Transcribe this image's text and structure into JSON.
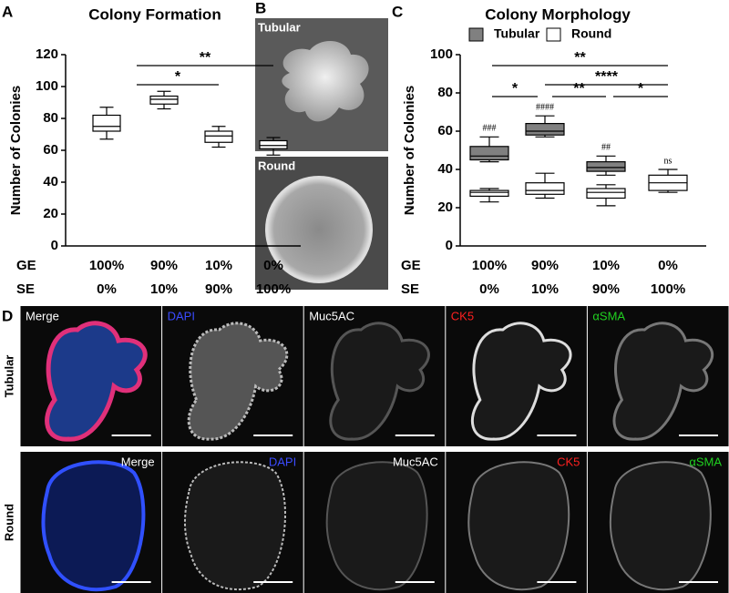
{
  "chart_data": [
    {
      "type": "box",
      "title": "Colony Formation",
      "y_label": "Number of Colonies",
      "category_rows": [
        {
          "label": "GE",
          "values": [
            "100%",
            "90%",
            "10%",
            "0%"
          ]
        },
        {
          "label": "SE",
          "values": [
            "0%",
            "10%",
            "90%",
            "100%"
          ]
        }
      ],
      "ylim": [
        0,
        120
      ],
      "yticks": [
        0,
        20,
        40,
        60,
        80,
        100,
        120
      ],
      "series": [
        {
          "color": "#ffffff",
          "values": [
            {
              "min": 67,
              "q1": 72,
              "median": 75,
              "q3": 82,
              "max": 87
            },
            {
              "min": 86,
              "q1": 89,
              "median": 92,
              "q3": 94,
              "max": 97
            },
            {
              "min": 62,
              "q1": 65,
              "median": 69,
              "q3": 72,
              "max": 75
            },
            {
              "min": 57,
              "q1": 61,
              "median": 63,
              "q3": 66,
              "max": 68
            }
          ]
        }
      ],
      "significance": [
        "*",
        "**"
      ]
    },
    {
      "type": "box",
      "title": "Colony Morphology",
      "y_label": "Number of Colonies",
      "category_rows": [
        {
          "label": "GE",
          "values": [
            "100%",
            "90%",
            "10%",
            "0%"
          ]
        },
        {
          "label": "SE",
          "values": [
            "0%",
            "10%",
            "90%",
            "100%"
          ]
        }
      ],
      "ylim": [
        0,
        100
      ],
      "yticks": [
        0,
        20,
        40,
        60,
        80,
        100
      ],
      "series": [
        {
          "name": "Tubular",
          "color": "#808080",
          "values": [
            {
              "min": 44,
              "q1": 45,
              "median": 47,
              "q3": 52,
              "max": 57
            },
            {
              "min": 57,
              "q1": 58,
              "median": 60,
              "q3": 64,
              "max": 68
            },
            {
              "min": 37,
              "q1": 39,
              "median": 41,
              "q3": 44,
              "max": 47
            },
            null
          ]
        },
        {
          "name": "Round",
          "color": "#ffffff",
          "values": [
            {
              "min": 23,
              "q1": 26,
              "median": 28,
              "q3": 29,
              "max": 30
            },
            {
              "min": 25,
              "q1": 27,
              "median": 29,
              "q3": 33,
              "max": 38
            },
            {
              "min": 21,
              "q1": 25,
              "median": 28,
              "q3": 30,
              "max": 32
            },
            {
              "min": 28,
              "q1": 29,
              "median": 33,
              "q3": 37,
              "max": 40
            }
          ]
        }
      ],
      "group_labels": [
        "###",
        "####",
        "##",
        "ns"
      ],
      "significance": [
        "**",
        "****",
        "*",
        "**",
        "*"
      ]
    }
  ],
  "panel_letters": [
    "A",
    "B",
    "C",
    "D"
  ],
  "panel_b": {
    "images": [
      "Tubular",
      "Round"
    ]
  },
  "panel_d": {
    "rows": [
      "Tubular",
      "Round"
    ],
    "channels": [
      {
        "name": "Merge",
        "color": "#ffffff"
      },
      {
        "name": "DAPI",
        "color": "#3b4bff"
      },
      {
        "name": "Muc5AC",
        "color": "#ffffff"
      },
      {
        "name": "CK5",
        "color": "#ff2020"
      },
      {
        "name": "αSMA",
        "color": "#20d020"
      }
    ]
  }
}
